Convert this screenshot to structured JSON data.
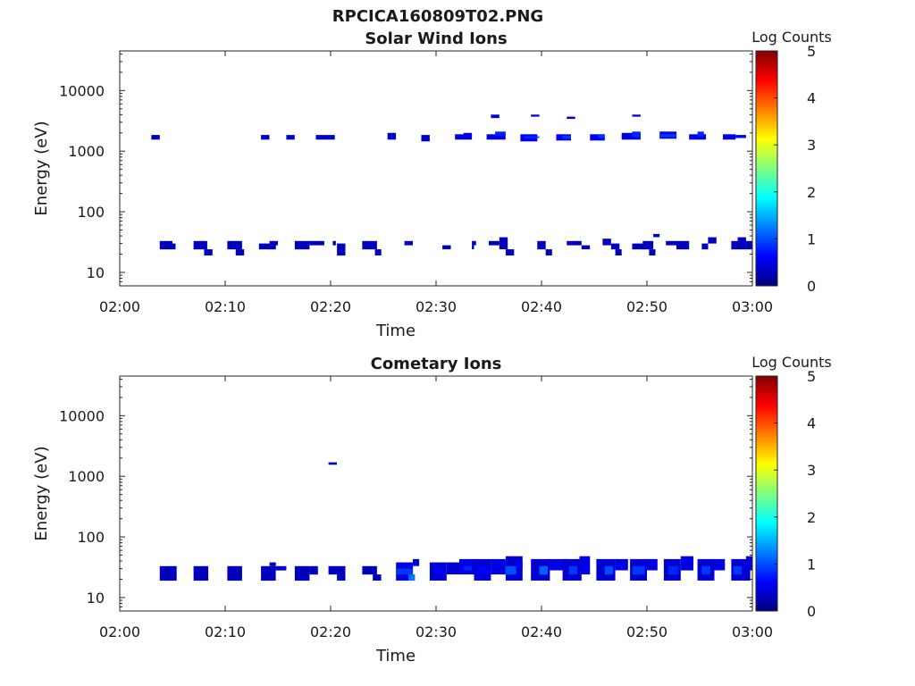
{
  "figure_title": "RPCICA160809T02.PNG",
  "colors": {
    "axis": "#262626",
    "background": "#ffffff",
    "colormap": [
      "#00007f",
      "#0000ff",
      "#007fff",
      "#00ffff",
      "#7fff7f",
      "#ffff00",
      "#ff7f00",
      "#ff0000",
      "#7f0000"
    ]
  },
  "chart_data": [
    {
      "type": "heatmap",
      "title": "Solar Wind Ions",
      "xlabel": "Time",
      "ylabel": "Energy (eV)",
      "x_ticks": [
        "02:00",
        "02:10",
        "02:20",
        "02:30",
        "02:40",
        "02:50",
        "03:00"
      ],
      "xlim_minutes": [
        0,
        60
      ],
      "y_scale": "log",
      "ylim": [
        6,
        45000
      ],
      "y_ticks": [
        10,
        100,
        1000,
        10000
      ],
      "y_tick_labels": [
        "10",
        "100",
        "1000",
        "10000"
      ],
      "colorbar": {
        "label": "Log Counts",
        "range": [
          0,
          5
        ],
        "ticks": [
          "0",
          "1",
          "2",
          "3",
          "4",
          "5"
        ]
      },
      "grid": false,
      "cells": [
        [
          3.0,
          3.8,
          1550,
          1850,
          0.3
        ],
        [
          3.8,
          5.0,
          24,
          33,
          0.3
        ],
        [
          5.0,
          5.3,
          24,
          30,
          0.3
        ],
        [
          7.0,
          8.3,
          24,
          33,
          0.3
        ],
        [
          8.0,
          8.8,
          19,
          24,
          0.3
        ],
        [
          10.2,
          11.6,
          24,
          33,
          0.3
        ],
        [
          11.0,
          11.8,
          19,
          24,
          0.3
        ],
        [
          13.4,
          14.2,
          1550,
          1850,
          0.4
        ],
        [
          13.2,
          14.8,
          24,
          30,
          0.3
        ],
        [
          14.2,
          15.0,
          28,
          33,
          0.3
        ],
        [
          15.8,
          16.6,
          1550,
          1850,
          0.4
        ],
        [
          16.6,
          18.0,
          24,
          33,
          0.3
        ],
        [
          18.0,
          19.4,
          28,
          33,
          0.3
        ],
        [
          18.6,
          20.4,
          1550,
          1850,
          0.4
        ],
        [
          20.2,
          20.5,
          28,
          33,
          0.3
        ],
        [
          20.6,
          21.4,
          19,
          30,
          0.3
        ],
        [
          23.0,
          24.4,
          24,
          33,
          0.3
        ],
        [
          24.2,
          24.8,
          19,
          24,
          0.3
        ],
        [
          25.4,
          26.2,
          1550,
          2000,
          0.4
        ],
        [
          27.0,
          27.8,
          28,
          33,
          0.3
        ],
        [
          28.6,
          29.4,
          1450,
          1850,
          0.4
        ],
        [
          30.6,
          31.4,
          24,
          28,
          0.3
        ],
        [
          31.8,
          33.4,
          1550,
          1900,
          0.4
        ],
        [
          32.6,
          33.4,
          1700,
          2000,
          0.6
        ],
        [
          33.4,
          33.8,
          28,
          33,
          0.3
        ],
        [
          33.4,
          33.6,
          24,
          28,
          0.3
        ],
        [
          35.2,
          36.0,
          3500,
          4000,
          0.4
        ],
        [
          34.8,
          36.6,
          1550,
          1900,
          0.5
        ],
        [
          35.6,
          36.6,
          1800,
          2100,
          0.8
        ],
        [
          35.0,
          36.0,
          28,
          33,
          0.3
        ],
        [
          36.0,
          36.8,
          24,
          38,
          0.3
        ],
        [
          36.6,
          37.4,
          19,
          24,
          0.3
        ],
        [
          39.0,
          39.8,
          3700,
          4000,
          0.4
        ],
        [
          38.0,
          39.6,
          1450,
          1900,
          0.6
        ],
        [
          38.4,
          39.8,
          1650,
          1750,
          0.9
        ],
        [
          39.6,
          40.4,
          24,
          33,
          0.3
        ],
        [
          40.4,
          41.0,
          19,
          24,
          0.3
        ],
        [
          41.4,
          42.8,
          1500,
          1900,
          0.6
        ],
        [
          42.0,
          42.8,
          1600,
          1800,
          0.9
        ],
        [
          42.4,
          43.2,
          3400,
          3700,
          0.4
        ],
        [
          42.4,
          43.8,
          28,
          33,
          0.3
        ],
        [
          43.8,
          44.6,
          24,
          28,
          0.3
        ],
        [
          44.6,
          46.0,
          1500,
          1900,
          0.6
        ],
        [
          45.4,
          46.0,
          1650,
          1850,
          0.9
        ],
        [
          45.8,
          46.6,
          28,
          36,
          0.3
        ],
        [
          46.6,
          47.4,
          24,
          30,
          0.3
        ],
        [
          47.0,
          47.6,
          19,
          24,
          0.3
        ],
        [
          47.6,
          49.4,
          1550,
          2000,
          0.5
        ],
        [
          48.6,
          49.4,
          1700,
          2100,
          0.8
        ],
        [
          48.6,
          49.4,
          3700,
          4000,
          0.4
        ],
        [
          48.6,
          49.8,
          24,
          30,
          0.3
        ],
        [
          49.6,
          50.6,
          24,
          33,
          0.3
        ],
        [
          50.2,
          50.8,
          19,
          24,
          0.3
        ],
        [
          50.6,
          51.2,
          38,
          43,
          0.3
        ],
        [
          51.2,
          52.8,
          1600,
          2100,
          0.6
        ],
        [
          51.2,
          52.8,
          1700,
          1900,
          0.9
        ],
        [
          51.8,
          52.8,
          28,
          33,
          0.3
        ],
        [
          52.8,
          54.0,
          24,
          33,
          0.3
        ],
        [
          54.0,
          55.6,
          1550,
          1900,
          0.5
        ],
        [
          54.8,
          55.4,
          1750,
          2100,
          0.8
        ],
        [
          55.2,
          55.8,
          24,
          30,
          0.3
        ],
        [
          55.8,
          56.6,
          30,
          38,
          0.3
        ],
        [
          57.2,
          58.4,
          1550,
          1900,
          0.5
        ],
        [
          58.4,
          59.4,
          1650,
          1850,
          0.6
        ],
        [
          58.0,
          59.4,
          24,
          33,
          0.3
        ],
        [
          58.6,
          59.4,
          30,
          38,
          0.3
        ],
        [
          59.4,
          60.0,
          24,
          33,
          0.3
        ]
      ]
    },
    {
      "type": "heatmap",
      "title": "Cometary Ions",
      "xlabel": "Time",
      "ylabel": "Energy (eV)",
      "x_ticks": [
        "02:00",
        "02:10",
        "02:20",
        "02:30",
        "02:40",
        "02:50",
        "03:00"
      ],
      "xlim_minutes": [
        0,
        60
      ],
      "y_scale": "log",
      "ylim": [
        6,
        45000
      ],
      "y_ticks": [
        10,
        100,
        1000,
        10000
      ],
      "y_tick_labels": [
        "10",
        "100",
        "1000",
        "10000"
      ],
      "colorbar": {
        "label": "Log Counts",
        "range": [
          0,
          5
        ],
        "ticks": [
          "0",
          "1",
          "2",
          "3",
          "4",
          "5"
        ]
      },
      "grid": false,
      "cells": [
        [
          19.8,
          20.6,
          1550,
          1700,
          0.4
        ],
        [
          3.8,
          5.4,
          19,
          33,
          0.3
        ],
        [
          7.0,
          8.4,
          19,
          33,
          0.3
        ],
        [
          10.2,
          11.6,
          19,
          33,
          0.3
        ],
        [
          13.4,
          14.8,
          19,
          33,
          0.3
        ],
        [
          14.2,
          14.8,
          33,
          38,
          0.3
        ],
        [
          14.8,
          15.8,
          28,
          33,
          0.4
        ],
        [
          16.6,
          18.0,
          19,
          33,
          0.3
        ],
        [
          18.0,
          18.8,
          24,
          33,
          0.3
        ],
        [
          19.8,
          21.4,
          24,
          33,
          0.3
        ],
        [
          20.6,
          21.4,
          19,
          24,
          0.3
        ],
        [
          23.0,
          24.4,
          24,
          33,
          0.3
        ],
        [
          24.0,
          24.8,
          19,
          24,
          0.3
        ],
        [
          26.2,
          27.8,
          19,
          38,
          0.5
        ],
        [
          26.2,
          27.8,
          24,
          30,
          0.9
        ],
        [
          27.4,
          28.0,
          19,
          24,
          1.2
        ],
        [
          27.8,
          28.4,
          33,
          43,
          0.4
        ],
        [
          29.4,
          31.0,
          19,
          38,
          0.4
        ],
        [
          29.8,
          30.8,
          24,
          33,
          0.6
        ],
        [
          31.0,
          32.2,
          24,
          38,
          0.4
        ],
        [
          32.2,
          33.8,
          24,
          43,
          0.5
        ],
        [
          32.6,
          33.4,
          28,
          33,
          0.8
        ],
        [
          33.6,
          35.2,
          19,
          43,
          0.4
        ],
        [
          34.0,
          35.0,
          24,
          33,
          0.6
        ],
        [
          35.2,
          36.6,
          24,
          43,
          0.5
        ],
        [
          36.6,
          38.2,
          19,
          48,
          0.4
        ],
        [
          36.6,
          37.6,
          24,
          33,
          1.0
        ],
        [
          37.6,
          38.2,
          30,
          38,
          0.6
        ],
        [
          39.0,
          40.8,
          19,
          43,
          0.4
        ],
        [
          39.8,
          40.6,
          24,
          33,
          1.1
        ],
        [
          40.6,
          42.4,
          28,
          43,
          0.5
        ],
        [
          42.0,
          43.8,
          19,
          43,
          0.4
        ],
        [
          42.6,
          43.4,
          24,
          33,
          0.9
        ],
        [
          43.6,
          44.6,
          24,
          48,
          0.5
        ],
        [
          45.2,
          47.0,
          19,
          43,
          0.4
        ],
        [
          46.0,
          46.8,
          24,
          33,
          1.0
        ],
        [
          47.0,
          48.2,
          28,
          43,
          0.5
        ],
        [
          48.4,
          50.0,
          19,
          43,
          0.4
        ],
        [
          48.6,
          49.8,
          24,
          33,
          0.9
        ],
        [
          49.8,
          51.0,
          28,
          43,
          0.5
        ],
        [
          51.6,
          53.2,
          19,
          43,
          0.4
        ],
        [
          52.0,
          53.0,
          24,
          33,
          0.8
        ],
        [
          53.2,
          54.4,
          28,
          48,
          0.5
        ],
        [
          54.8,
          56.4,
          19,
          43,
          0.4
        ],
        [
          55.2,
          56.0,
          24,
          33,
          0.9
        ],
        [
          56.4,
          57.4,
          28,
          43,
          0.5
        ],
        [
          58.0,
          59.8,
          19,
          43,
          0.4
        ],
        [
          58.2,
          59.0,
          24,
          33,
          0.9
        ],
        [
          59.4,
          60.0,
          28,
          48,
          0.5
        ]
      ]
    }
  ]
}
